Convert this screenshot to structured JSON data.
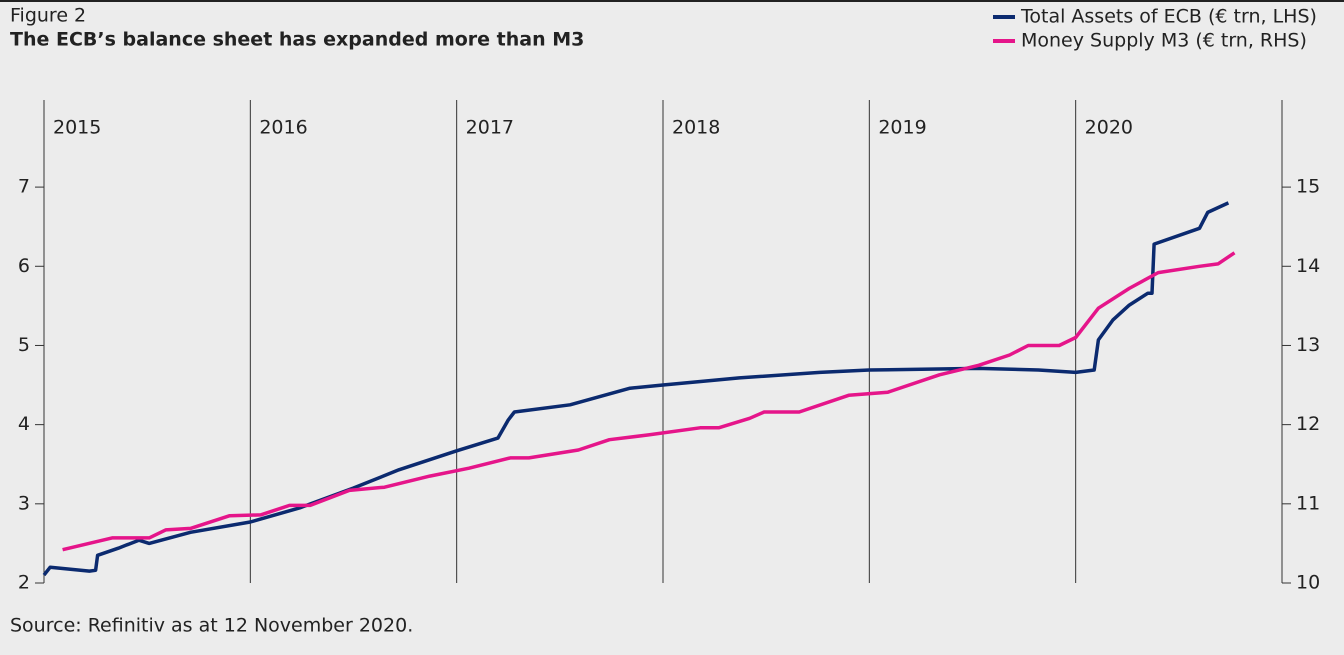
{
  "chart_data": {
    "type": "line",
    "label": "Figure 2",
    "title": "The ECB’s balance sheet has expanded more than M3",
    "source": "Source: Refinitiv as at 12 November 2020.",
    "xlim": [
      2015,
      2021
    ],
    "xticks": [
      2015,
      2016,
      2017,
      2018,
      2019,
      2020
    ],
    "ylim": [
      2,
      8.1
    ],
    "yticks": [
      2,
      3,
      4,
      5,
      6,
      7
    ],
    "y2lim": [
      10,
      16.1
    ],
    "y2ticks": [
      10,
      11,
      12,
      13,
      14,
      15
    ],
    "grid": true,
    "legend": "top-right",
    "series": [
      {
        "name": "Total Assets of ECB (€ trn, LHS)",
        "color": "#0b2a6f",
        "x": [
          2015.0,
          2015.03,
          2015.22,
          2015.25,
          2015.26,
          2015.36,
          2015.46,
          2015.51,
          2015.71,
          2016.0,
          2016.24,
          2016.5,
          2016.72,
          2017.0,
          2017.2,
          2017.25,
          2017.28,
          2017.55,
          2017.84,
          2018.0,
          2018.37,
          2018.76,
          2019.0,
          2019.53,
          2019.82,
          2020.0,
          2020.09,
          2020.11,
          2020.18,
          2020.26,
          2020.35,
          2020.37,
          2020.38,
          2020.6,
          2020.64,
          2020.74
        ],
        "values": [
          2.1,
          2.2,
          2.15,
          2.16,
          2.35,
          2.44,
          2.54,
          2.5,
          2.64,
          2.77,
          2.95,
          3.2,
          3.43,
          3.67,
          3.83,
          4.06,
          4.16,
          4.25,
          4.46,
          4.5,
          4.59,
          4.66,
          4.69,
          4.71,
          4.69,
          4.66,
          4.69,
          5.07,
          5.32,
          5.51,
          5.66,
          5.66,
          6.28,
          6.48,
          6.68,
          6.8
        ]
      },
      {
        "name": "Money Supply M3 (€ trn, RHS)",
        "color": "#e5158a",
        "axis": "y2",
        "x": [
          2015.09,
          2015.33,
          2015.51,
          2015.59,
          2015.71,
          2015.9,
          2016.05,
          2016.19,
          2016.29,
          2016.48,
          2016.65,
          2016.87,
          2017.06,
          2017.26,
          2017.35,
          2017.59,
          2017.74,
          2017.93,
          2018.18,
          2018.27,
          2018.42,
          2018.49,
          2018.66,
          2018.9,
          2019.09,
          2019.34,
          2019.53,
          2019.68,
          2019.77,
          2019.92,
          2020.0,
          2020.11,
          2020.26,
          2020.4,
          2020.6,
          2020.69,
          2020.77
        ],
        "values": [
          10.42,
          10.57,
          10.57,
          10.67,
          10.69,
          10.85,
          10.86,
          10.98,
          10.98,
          11.17,
          11.21,
          11.35,
          11.45,
          11.58,
          11.58,
          11.68,
          11.81,
          11.87,
          11.96,
          11.96,
          12.08,
          12.16,
          12.16,
          12.37,
          12.41,
          12.63,
          12.75,
          12.88,
          13.0,
          13.0,
          13.1,
          13.47,
          13.72,
          13.92,
          14.0,
          14.03,
          14.17
        ]
      }
    ]
  }
}
